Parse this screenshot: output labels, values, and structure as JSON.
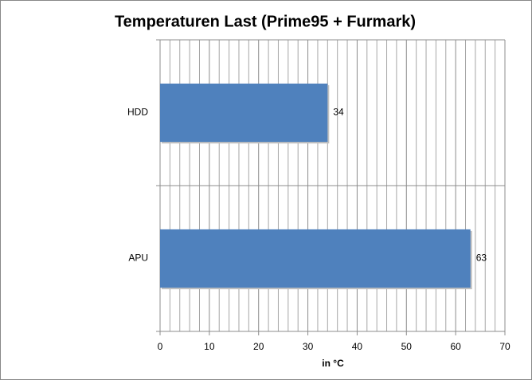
{
  "chart_data": {
    "type": "bar",
    "orientation": "horizontal",
    "title": "Temperaturen Last (Prime95 + Furmark)",
    "categories": [
      "HDD",
      "APU"
    ],
    "values": [
      34,
      63
    ],
    "color": "#4f81bd",
    "xlabel": "in °C",
    "xlim": [
      0,
      70
    ],
    "xticks": [
      0,
      10,
      20,
      30,
      40,
      50,
      60,
      70
    ],
    "grid": true,
    "legend": false
  }
}
